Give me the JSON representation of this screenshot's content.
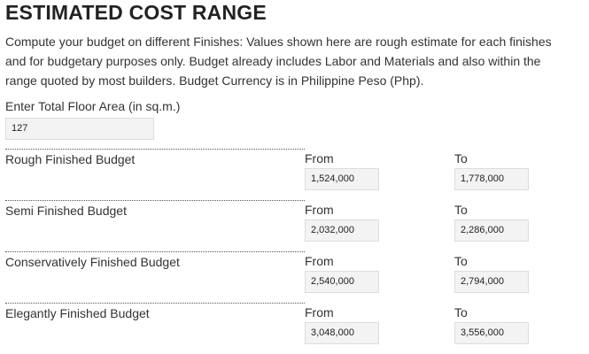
{
  "header": {
    "title": "ESTIMATED COST RANGE",
    "description": [
      "Compute your budget on different Finishes: Values shown here are rough estimate for each finishes",
      "and for budgetary purposes only. Budget already includes Labor and Materials and also within the",
      "range quoted by most builders. Budget Currency is in Philippine Peso (Php)."
    ]
  },
  "floor_area": {
    "label": "Enter Total Floor Area (in sq.m.)",
    "value": 127
  },
  "budgets": {
    "rows": [
      {
        "label": "Rough Finished Budget",
        "from_label": "From",
        "from": "1,524,000",
        "to_label": "To",
        "to": "1,778,000"
      },
      {
        "label": "Semi Finished Budget",
        "from_label": "From",
        "from": "2,032,000",
        "to_label": "To",
        "to": "2,286,000"
      },
      {
        "label": "Conservatively Finished Budget",
        "from_label": "From",
        "from": "2,540,000",
        "to_label": "To",
        "to": "2,794,000"
      },
      {
        "label": "Elegantly Finished Budget",
        "from_label": "From",
        "from": "3,048,000",
        "to_label": "To",
        "to": "3,556,000"
      }
    ]
  }
}
